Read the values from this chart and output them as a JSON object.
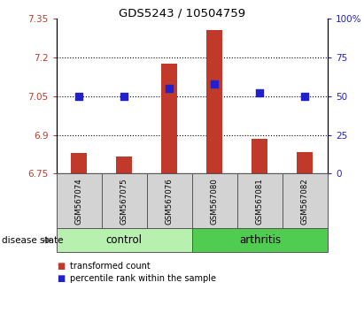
{
  "title": "GDS5243 / 10504759",
  "samples": [
    "GSM567074",
    "GSM567075",
    "GSM567076",
    "GSM567080",
    "GSM567081",
    "GSM567082"
  ],
  "bar_values": [
    6.83,
    6.815,
    7.175,
    7.305,
    6.885,
    6.835
  ],
  "bar_bottom": 6.75,
  "blue_values": [
    50,
    50,
    55,
    58,
    52,
    50
  ],
  "ylim_left": [
    6.75,
    7.35
  ],
  "ylim_right": [
    0,
    100
  ],
  "yticks_left": [
    6.75,
    6.9,
    7.05,
    7.2,
    7.35
  ],
  "ytick_labels_left": [
    "6.75",
    "6.9",
    "7.05",
    "7.2",
    "7.35"
  ],
  "yticks_right": [
    0,
    25,
    50,
    75,
    100
  ],
  "ytick_labels_right": [
    "0",
    "25",
    "50",
    "75",
    "100%"
  ],
  "hlines": [
    7.2,
    7.05,
    6.9
  ],
  "bar_color": "#c0392b",
  "blue_color": "#2020cc",
  "control_color": "#b8f0b0",
  "arthritis_color": "#50cc50",
  "sample_box_color": "#d3d3d3",
  "xlabel_label": "disease state",
  "group_label_control": "control",
  "group_label_arthritis": "arthritis",
  "legend_bar_label": "transformed count",
  "legend_blue_label": "percentile rank within the sample",
  "blue_dot_size": 28
}
